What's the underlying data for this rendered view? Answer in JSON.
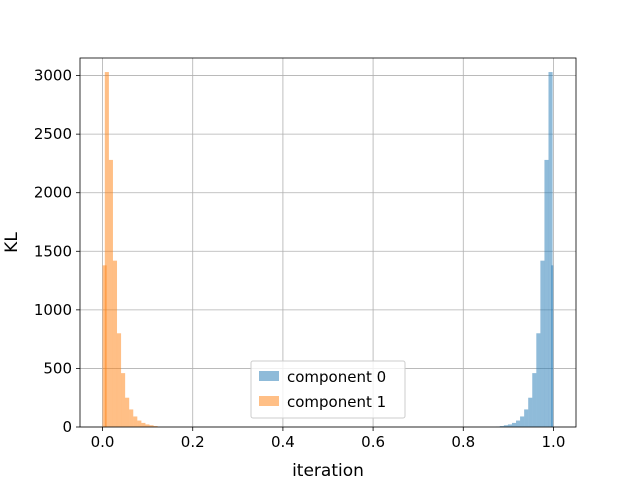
{
  "chart_data": {
    "type": "bar",
    "xlabel": "iteration",
    "ylabel": "KL",
    "xlim": [
      -0.05,
      1.05
    ],
    "ylim": [
      0,
      3150
    ],
    "xticks": [
      0.0,
      0.2,
      0.4,
      0.6,
      0.8,
      1.0
    ],
    "xtick_labels": [
      "0.0",
      "0.2",
      "0.4",
      "0.6",
      "0.8",
      "1.0"
    ],
    "yticks": [
      0,
      500,
      1000,
      1500,
      2000,
      2500,
      3000
    ],
    "ytick_labels": [
      "0",
      "500",
      "1000",
      "1500",
      "2000",
      "2500",
      "3000"
    ],
    "grid": true,
    "legend_position": "lower-center",
    "bin_width": 0.0091,
    "series": [
      {
        "name": "component 0",
        "color": "#1f77b4",
        "opacity": 0.5,
        "bin_left": [
          0.872,
          0.881,
          0.89,
          0.899,
          0.908,
          0.917,
          0.926,
          0.935,
          0.944,
          0.953,
          0.962,
          0.971,
          0.98,
          0.989
        ],
        "counts": [
          3,
          8,
          15,
          22,
          35,
          55,
          90,
          150,
          250,
          460,
          800,
          1420,
          2280,
          3030
        ],
        "extra_bars": [
          {
            "left": 0.995,
            "count": 1380
          }
        ]
      },
      {
        "name": "component 1",
        "color": "#ff7f0e",
        "opacity": 0.5,
        "bin_left": [
          0.0,
          0.005,
          0.014,
          0.023,
          0.032,
          0.041,
          0.05,
          0.059,
          0.068,
          0.077,
          0.086,
          0.095,
          0.104,
          0.113
        ],
        "counts": [
          1380,
          3030,
          2280,
          1420,
          800,
          460,
          250,
          150,
          90,
          55,
          35,
          22,
          15,
          8
        ]
      }
    ]
  }
}
